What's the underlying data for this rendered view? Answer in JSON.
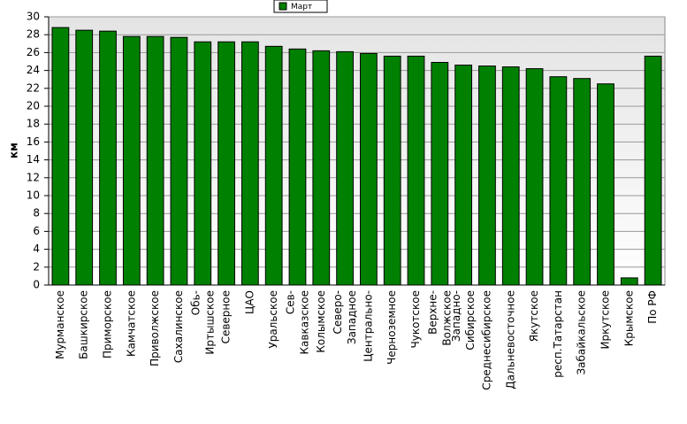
{
  "chart_data": {
    "type": "bar",
    "y_label": "км",
    "categories": [
      "Мурманское",
      "Башкирское",
      "Приморское",
      "Камчатское",
      "Приволжское",
      "Сахалинское",
      "Обь-Иртышское",
      "Северное",
      "ЦАО",
      "Уральское",
      "Сев-Кавказское",
      "Колымское",
      "Северо-Западное",
      "Центрально-",
      "Черноземное",
      "Чукотское",
      "Верхне-Волжское",
      "Западно-Сибирское",
      "Среднесибирское",
      "Дальневосточное",
      "Якутское",
      "респ.Татарстан",
      "Забайкальское",
      "Иркутское",
      "Крымское",
      "По РФ"
    ],
    "series": [
      {
        "name": "Март",
        "color": "#008000",
        "values": [
          28.8,
          28.5,
          28.4,
          27.8,
          27.8,
          27.7,
          27.2,
          27.2,
          27.2,
          26.7,
          26.4,
          26.2,
          26.1,
          25.9,
          25.6,
          25.6,
          24.9,
          24.6,
          24.5,
          24.4,
          24.2,
          23.3,
          23.1,
          22.5,
          0.8,
          25.6
        ]
      }
    ],
    "ylim": [
      0,
      30
    ],
    "yticks": [
      0,
      2,
      4,
      6,
      8,
      10,
      12,
      14,
      16,
      18,
      20,
      22,
      24,
      26,
      28,
      30
    ],
    "grid": true,
    "legend": "top"
  }
}
